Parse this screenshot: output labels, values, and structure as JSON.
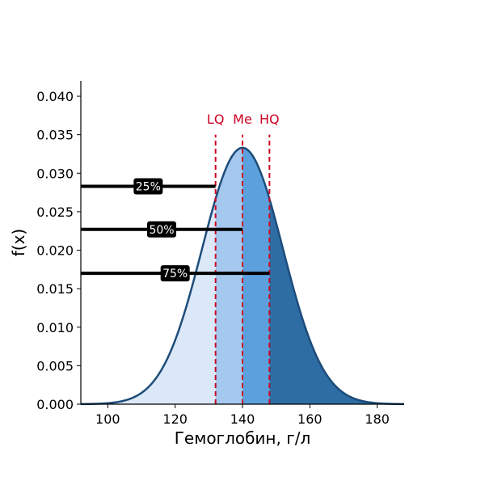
{
  "chart_data": {
    "type": "area",
    "xlabel": "Гемоглобин, г/л",
    "ylabel": "f(x)",
    "xlim": [
      92,
      188
    ],
    "ylim": [
      0,
      0.042
    ],
    "xticks": [
      100,
      120,
      140,
      160,
      180
    ],
    "yticks": [
      "0.000",
      "0.005",
      "0.010",
      "0.015",
      "0.020",
      "0.025",
      "0.030",
      "0.035",
      "0.040"
    ],
    "distribution": {
      "kind": "normal",
      "mean": 140,
      "sd": 12,
      "peak_density": 0.0333
    },
    "quantile_lines": [
      {
        "label": "LQ",
        "x": 132
      },
      {
        "label": "Me",
        "x": 140
      },
      {
        "label": "HQ",
        "x": 148
      }
    ],
    "percent_lines": [
      {
        "label": "25%",
        "y": 0.0283,
        "x_end": 132
      },
      {
        "label": "50%",
        "y": 0.0227,
        "x_end": 140
      },
      {
        "label": "75%",
        "y": 0.017,
        "x_end": 148
      }
    ],
    "region_colors": [
      "#dbe8f8",
      "#a4c8ee",
      "#5ca1dd",
      "#2e6da4"
    ],
    "curve_color": "#1d4c7a",
    "quantile_line_color": "#cc0022",
    "grid": false
  }
}
